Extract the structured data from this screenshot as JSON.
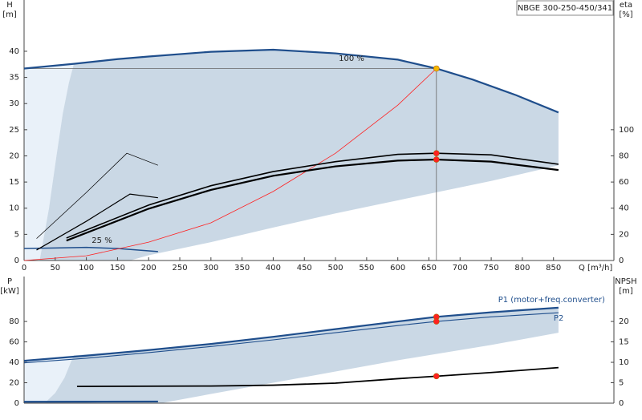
{
  "chart_data": [
    {
      "type": "line",
      "title": "NBGE 300-250-450/341",
      "xlabel": "Q [m³/h]",
      "ylabel": [
        "H",
        "[m]"
      ],
      "y2label": [
        "eta",
        "[%]"
      ],
      "xlim": [
        0,
        947
      ],
      "ylim": [
        0,
        49.8
      ],
      "y2lim": [
        0,
        199.2
      ],
      "xticks": [
        0,
        50,
        100,
        150,
        200,
        250,
        300,
        350,
        400,
        450,
        500,
        550,
        600,
        650,
        700,
        750,
        800,
        850
      ],
      "yticks": [
        0,
        5,
        10,
        15,
        20,
        25,
        30,
        35,
        40
      ],
      "y2ticks": [
        0,
        20,
        40,
        60,
        80,
        100
      ],
      "annotations": [
        "100 %",
        "25 %"
      ],
      "areas": [
        {
          "color": "#e9f1f9",
          "x": [
            0,
            0,
            80,
            72,
            62,
            52,
            40,
            25
          ],
          "y": [
            0,
            36.7,
            37.6,
            34,
            28,
            20,
            10,
            0
          ]
        },
        {
          "color": "#cad8e5",
          "x": [
            80,
            150,
            200,
            300,
            400,
            500,
            600,
            662,
            720,
            790,
            858,
            858,
            750,
            600,
            500,
            400,
            300,
            200,
            170,
            25,
            40,
            52,
            62,
            72
          ],
          "y": [
            37.6,
            38.5,
            39.0,
            39.9,
            40.3,
            39.6,
            38.4,
            36.7,
            34.6,
            31.6,
            28.3,
            18.2,
            15.2,
            11.5,
            9,
            6.3,
            3.5,
            1,
            0,
            0,
            10,
            20,
            28,
            34
          ]
        }
      ],
      "series": [
        {
          "color": "#1f4e8c",
          "width": 2.2,
          "x": [
            0,
            80,
            150,
            200,
            300,
            400,
            500,
            600,
            662,
            720,
            790,
            858
          ],
          "values": [
            36.7,
            37.6,
            38.5,
            39.0,
            39.9,
            40.3,
            39.6,
            38.4,
            36.7,
            34.6,
            31.6,
            28.3
          ]
        },
        {
          "color": "#1f4e8c",
          "width": 1.5,
          "x": [
            0,
            50,
            100,
            150,
            215
          ],
          "values": [
            2.3,
            2.4,
            2.5,
            2.3,
            1.7
          ]
        },
        {
          "color": "#ff2020",
          "width": 0.8,
          "x": [
            0,
            100,
            200,
            300,
            400,
            500,
            600,
            662
          ],
          "values": [
            0,
            0.9,
            3.5,
            7.2,
            13.2,
            20.5,
            29.7,
            36.7
          ]
        },
        {
          "color": "#000000",
          "width": 1.6,
          "axis": "y2",
          "x": [
            68,
            200,
            300,
            400,
            500,
            600,
            662,
            750,
            858
          ],
          "values": [
            17.2,
            42.4,
            57.2,
            68,
            75.6,
            81.2,
            82,
            80.8,
            73.6
          ]
        },
        {
          "color": "#000000",
          "width": 2.2,
          "axis": "y2",
          "x": [
            68,
            200,
            300,
            400,
            500,
            600,
            662,
            750,
            858
          ],
          "values": [
            15.2,
            39.6,
            54,
            64.8,
            72,
            76.4,
            77.2,
            75.6,
            69.2
          ]
        },
        {
          "color": "#000000",
          "width": 0.7,
          "axis": "y2",
          "x": [
            20,
            100,
            165,
            215
          ],
          "values": [
            16.8,
            52,
            82,
            72.8
          ]
        },
        {
          "color": "#000000",
          "width": 1.2,
          "axis": "y2",
          "x": [
            20,
            100,
            170,
            215
          ],
          "values": [
            8,
            30,
            50.8,
            48
          ]
        }
      ],
      "points": [
        {
          "color": "#f5b800",
          "x": 662,
          "y": 36.7
        },
        {
          "color": "#ff2020",
          "axis": "y2",
          "x": 662,
          "y": 82
        },
        {
          "color": "#ff2020",
          "axis": "y2",
          "x": 662,
          "y": 77.2
        }
      ]
    },
    {
      "type": "line",
      "ylabel": [
        "P",
        "[kW]"
      ],
      "y2label": [
        "NPSH",
        "[m]"
      ],
      "xlim": [
        0,
        947
      ],
      "ylim": [
        0,
        124
      ],
      "y2lim": [
        0,
        31
      ],
      "yticks": [
        0,
        20,
        40,
        60,
        80
      ],
      "y2ticks": [
        0,
        5,
        10,
        15,
        20
      ],
      "areas": [
        {
          "color": "#e9f1f9",
          "x": [
            0,
            0,
            80,
            75,
            65,
            50,
            33
          ],
          "y": [
            0,
            41.5,
            46.9,
            40,
            25,
            10,
            0
          ]
        },
        {
          "color": "#cad8e5",
          "x": [
            80,
            200,
            300,
            400,
            500,
            600,
            662,
            750,
            858,
            858,
            750,
            600,
            500,
            400,
            300,
            220,
            33,
            50,
            65,
            75
          ],
          "y": [
            46.9,
            52,
            58,
            65,
            72.5,
            80,
            84.5,
            89,
            93.5,
            69,
            57,
            42,
            31,
            20,
            9,
            0,
            0,
            10,
            25,
            40
          ]
        }
      ],
      "series": [
        {
          "name": "P1 (motor+freq.converter)",
          "color": "#1f4e8c",
          "width": 2.2,
          "x": [
            0,
            100,
            200,
            300,
            400,
            500,
            600,
            662,
            750,
            858
          ],
          "values": [
            41.5,
            46.5,
            52,
            58,
            65,
            72.5,
            80,
            84.5,
            89,
            93.5
          ]
        },
        {
          "name": "P2",
          "color": "#1f4e8c",
          "width": 1.1,
          "x": [
            0,
            100,
            200,
            300,
            400,
            500,
            600,
            662,
            750,
            858
          ],
          "values": [
            39.5,
            44,
            49.5,
            55.5,
            62,
            69,
            76,
            80,
            84.5,
            88.5
          ]
        },
        {
          "color": "#1f4e8c",
          "width": 2.2,
          "x": [
            0,
            100,
            215
          ],
          "values": [
            1.4,
            1.5,
            1.6
          ]
        },
        {
          "color": "#000000",
          "width": 1.8,
          "axis": "y2",
          "x": [
            85,
            300,
            400,
            500,
            600,
            662,
            750,
            858
          ],
          "values": [
            4.1,
            4.2,
            4.4,
            4.9,
            6.0,
            6.6,
            7.5,
            8.7
          ]
        }
      ],
      "points": [
        {
          "color": "#ff2020",
          "x": 662,
          "y": 84.5
        },
        {
          "color": "#ff2020",
          "x": 662,
          "y": 80
        },
        {
          "color": "#ff2020",
          "axis": "y2",
          "x": 662,
          "y": 6.6
        }
      ]
    }
  ]
}
